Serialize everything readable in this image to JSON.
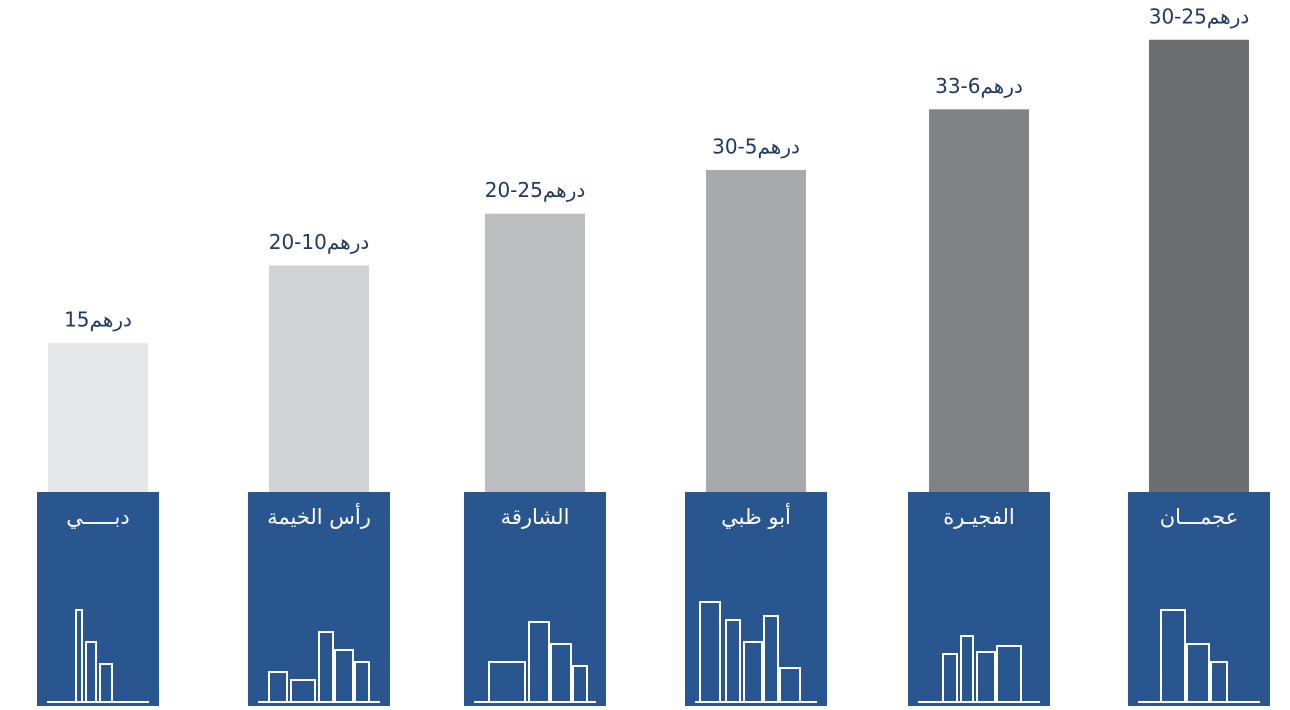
{
  "chart_data": {
    "type": "bar",
    "categories": [
      "دبـــــي",
      "رأس الخيمة",
      "الشارقة",
      "أبو ظبي",
      "الفجيـرة",
      "عجمـــان"
    ],
    "values": [
      15,
      22.8,
      28,
      32.4,
      38.5,
      45.5
    ],
    "labels": [
      "15درهم",
      "20-10درهم",
      "20-25درهم",
      "30-5درهم",
      "33-6درهم",
      "30-25درهم"
    ],
    "colors": [
      "#e6e7e8",
      "#d1d2d4",
      "#bcbdc0",
      "#a7a9ac",
      "#808285",
      "#6d6e71"
    ],
    "panel_color": "#2a5690",
    "ylim": [
      0,
      49.5
    ]
  }
}
